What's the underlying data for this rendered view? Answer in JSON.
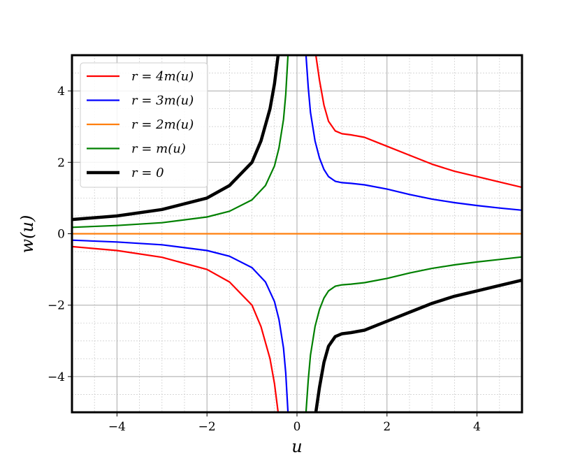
{
  "chart_data": {
    "type": "line",
    "title": "",
    "xlabel": "u",
    "ylabel": "w(u)",
    "xlim": [
      -5,
      5
    ],
    "ylim": [
      -5,
      5
    ],
    "x_ticks": [
      -4,
      -2,
      0,
      2,
      4
    ],
    "y_ticks": [
      -4,
      -2,
      0,
      2,
      4
    ],
    "x_tick_labels": [
      "−4",
      "−2",
      "0",
      "2",
      "4"
    ],
    "y_tick_labels": [
      "−4",
      "−2",
      "0",
      "2",
      "4"
    ],
    "grid": {
      "major": true,
      "minor": true
    },
    "legend_position": "upper-left",
    "series": [
      {
        "name": "r = 4m(u)",
        "color": "#ff0000",
        "style": "normal",
        "branches": [
          {
            "x": [
              -5,
              -4,
              -3,
              -2,
              -1.5,
              -1,
              -0.8,
              -0.6,
              -0.5,
              -0.42
            ],
            "y": [
              -0.36,
              -0.47,
              -0.66,
              -1.0,
              -1.35,
              -2.0,
              -2.6,
              -3.5,
              -4.2,
              -5.0
            ]
          },
          {
            "x": [
              0.42,
              0.5,
              0.6,
              0.7,
              0.85,
              1.0,
              1.2,
              1.5,
              1.8,
              2.0,
              2.5,
              3.0,
              3.5,
              4.0,
              4.5,
              5.0
            ],
            "y": [
              5.0,
              4.3,
              3.6,
              3.15,
              2.88,
              2.8,
              2.77,
              2.7,
              2.55,
              2.45,
              2.2,
              1.95,
              1.75,
              1.6,
              1.45,
              1.3
            ]
          }
        ]
      },
      {
        "name": "r = 3m(u)",
        "color": "#0000ff",
        "style": "normal",
        "branches": [
          {
            "x": [
              -5,
              -4,
              -3,
              -2,
              -1.5,
              -1,
              -0.7,
              -0.5,
              -0.4,
              -0.3,
              -0.25,
              -0.2
            ],
            "y": [
              -0.18,
              -0.23,
              -0.31,
              -0.47,
              -0.63,
              -0.95,
              -1.35,
              -1.9,
              -2.4,
              -3.2,
              -3.9,
              -5.0
            ]
          },
          {
            "x": [
              0.2,
              0.25,
              0.3,
              0.4,
              0.5,
              0.6,
              0.7,
              0.85,
              1.0,
              1.2,
              1.5,
              2.0,
              2.5,
              3.0,
              3.5,
              4.0,
              4.5,
              5.0
            ],
            "y": [
              5.0,
              4.1,
              3.4,
              2.6,
              2.12,
              1.8,
              1.6,
              1.47,
              1.43,
              1.41,
              1.37,
              1.25,
              1.1,
              0.97,
              0.87,
              0.79,
              0.72,
              0.66
            ]
          }
        ]
      },
      {
        "name": "r = 2m(u)",
        "color": "#ff7f0e",
        "style": "normal",
        "branches": [
          {
            "x": [
              -5,
              5
            ],
            "y": [
              0,
              0
            ]
          }
        ]
      },
      {
        "name": "r = m(u)",
        "color": "#008000",
        "style": "normal",
        "branches": [
          {
            "x": [
              -5,
              -4,
              -3,
              -2,
              -1.5,
              -1,
              -0.7,
              -0.5,
              -0.4,
              -0.3,
              -0.25,
              -0.2
            ],
            "y": [
              0.18,
              0.23,
              0.31,
              0.47,
              0.63,
              0.95,
              1.35,
              1.9,
              2.4,
              3.2,
              3.9,
              5.0
            ]
          },
          {
            "x": [
              0.2,
              0.25,
              0.3,
              0.4,
              0.5,
              0.6,
              0.7,
              0.85,
              1.0,
              1.2,
              1.5,
              2.0,
              2.5,
              3.0,
              3.5,
              4.0,
              4.5,
              5.0
            ],
            "y": [
              -5.0,
              -4.1,
              -3.4,
              -2.6,
              -2.12,
              -1.8,
              -1.6,
              -1.47,
              -1.43,
              -1.41,
              -1.37,
              -1.25,
              -1.1,
              -0.97,
              -0.87,
              -0.79,
              -0.72,
              -0.65
            ]
          }
        ]
      },
      {
        "name": "r = 0",
        "color": "#000000",
        "style": "bold",
        "branches": [
          {
            "x": [
              -5,
              -4,
              -3,
              -2,
              -1.5,
              -1,
              -0.8,
              -0.6,
              -0.5,
              -0.42
            ],
            "y": [
              0.4,
              0.5,
              0.68,
              1.0,
              1.35,
              2.0,
              2.6,
              3.5,
              4.2,
              5.0
            ]
          },
          {
            "x": [
              0.42,
              0.5,
              0.6,
              0.7,
              0.85,
              1.0,
              1.2,
              1.5,
              1.8,
              2.0,
              2.5,
              3.0,
              3.5,
              4.0,
              4.5,
              5.0
            ],
            "y": [
              -5.0,
              -4.3,
              -3.6,
              -3.15,
              -2.88,
              -2.8,
              -2.77,
              -2.7,
              -2.55,
              -2.45,
              -2.2,
              -1.95,
              -1.75,
              -1.6,
              -1.45,
              -1.3
            ]
          }
        ]
      }
    ]
  }
}
